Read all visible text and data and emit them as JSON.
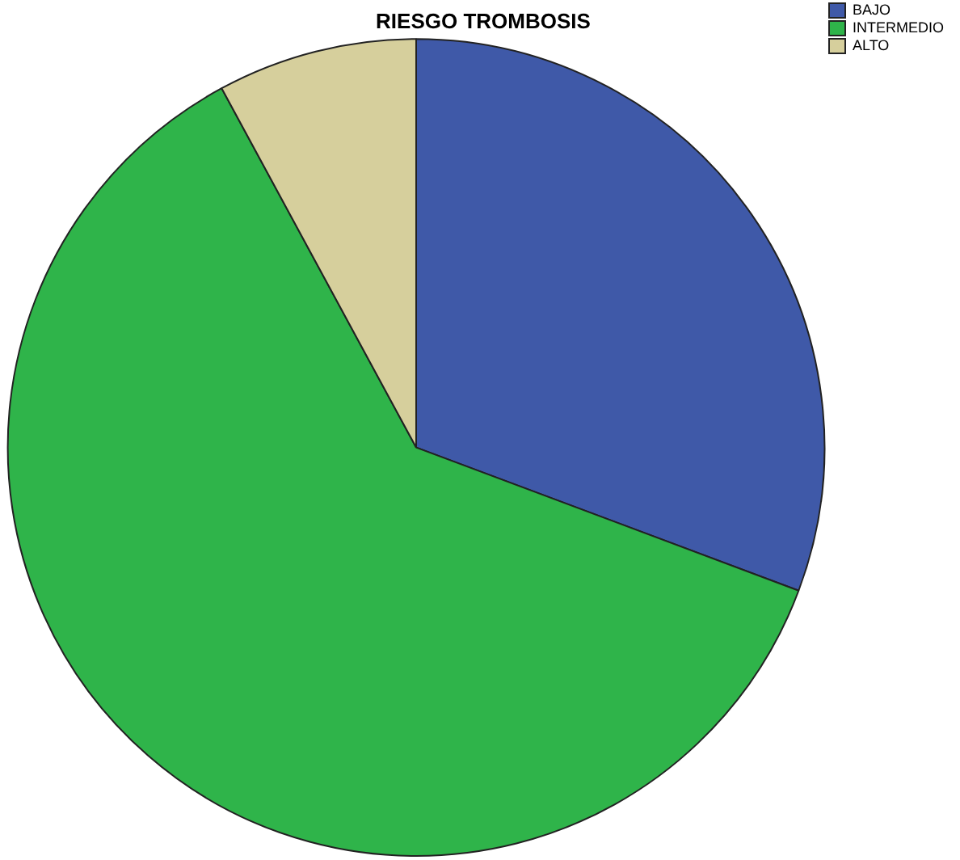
{
  "chart_data": {
    "type": "pie",
    "title": "RIESGO TROMBOSIS",
    "categories": [
      "BAJO",
      "INTERMEDIO",
      "ALTO"
    ],
    "values": [
      30.7,
      61.4,
      7.9
    ],
    "colors": [
      "#3f59a8",
      "#2fb44a",
      "#d6cf9c"
    ],
    "legend": "top right"
  }
}
